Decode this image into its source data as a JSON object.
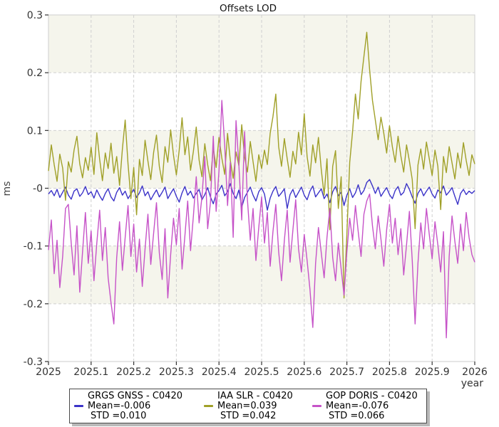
{
  "title": "Offsets LOD",
  "axes": {
    "xlabel": "year",
    "ylabel": "ms"
  },
  "legend": {
    "entries": [
      {
        "name": "GRGS GNSS - C0420",
        "mean": "Mean=-0.006",
        "std": "STD =0.010"
      },
      {
        "name": "IAA SLR - C0420",
        "mean": "Mean=0.039",
        "std": "STD =0.042"
      },
      {
        "name": "GOP DORIS - C0420",
        "mean": "Mean=-0.076",
        "std": "STD =0.066"
      }
    ]
  },
  "chart_data": {
    "type": "line",
    "title": "Offsets LOD",
    "xlabel": "year",
    "ylabel": "ms",
    "xlim": [
      2025,
      2026
    ],
    "ylim": [
      -0.3,
      0.3
    ],
    "grid": "dashed",
    "legend_position": "bottom",
    "band_colors": [
      "#f5f5ec",
      "#ffffff"
    ],
    "border_color": "#d4d4d4",
    "grid_color": "#cfcfcf",
    "tick_color": "#333333",
    "text_color": "#333333",
    "x_ticks": [
      "2025",
      "2025.1",
      "2025.2",
      "2025.3",
      "2025.4",
      "2025.5",
      "2025.6",
      "2025.7",
      "2025.8",
      "2025.9",
      "2026"
    ],
    "x_tick_values": [
      2025,
      2025.1,
      2025.2,
      2025.3,
      2025.4,
      2025.5,
      2025.6,
      2025.7,
      2025.8,
      2025.9,
      2026
    ],
    "y_ticks": [
      "0.3",
      "0.2",
      "0.1",
      "-0",
      "-0.1",
      "-0.2",
      "-0.3"
    ],
    "y_tick_values": [
      0.3,
      0.2,
      0.1,
      0,
      -0.1,
      -0.2,
      -0.3
    ],
    "series": [
      {
        "name": "GRGS GNSS - C0420",
        "color": "#3b33c8",
        "mean": -0.006,
        "std": 0.01,
        "x_start": 2025,
        "x_step": 0.0066667,
        "values": [
          -0.01,
          -0.004,
          -0.013,
          -0.002,
          -0.016,
          -0.007,
          0.002,
          -0.012,
          -0.019,
          -0.005,
          -0.001,
          -0.014,
          -0.008,
          0.003,
          -0.011,
          -0.006,
          -0.017,
          -0.003,
          -0.013,
          -0.021,
          -0.009,
          -0.001,
          -0.015,
          -0.022,
          -0.007,
          0.001,
          -0.012,
          -0.005,
          -0.018,
          -0.01,
          -0.002,
          -0.016,
          -0.008,
          0.004,
          -0.013,
          -0.006,
          -0.02,
          -0.011,
          -0.003,
          -0.015,
          -0.007,
          0.002,
          -0.018,
          -0.009,
          -0.001,
          -0.014,
          -0.024,
          -0.008,
          0.003,
          -0.012,
          -0.005,
          -0.017,
          -0.009,
          -0.002,
          -0.02,
          -0.011,
          0.001,
          -0.015,
          -0.027,
          -0.01,
          -0.004,
          0.005,
          -0.013,
          -0.006,
          0.008,
          -0.009,
          -0.018,
          -0.003,
          -0.033,
          -0.016,
          -0.007,
          0.002,
          -0.012,
          -0.022,
          -0.006,
          0.001,
          -0.01,
          -0.038,
          -0.017,
          -0.005,
          0.003,
          -0.014,
          -0.008,
          -0.001,
          -0.035,
          -0.011,
          -0.002,
          -0.016,
          -0.007,
          0.002,
          -0.012,
          -0.02,
          -0.005,
          0.004,
          -0.015,
          -0.008,
          -0.001,
          -0.018,
          -0.01,
          -0.025,
          -0.006,
          0.003,
          -0.013,
          -0.007,
          -0.03,
          -0.012,
          -0.001,
          -0.016,
          -0.008,
          0.006,
          -0.011,
          -0.004,
          0.01,
          0.015,
          0.004,
          -0.009,
          0.002,
          -0.014,
          -0.006,
          0.001,
          -0.011,
          -0.018,
          -0.004,
          0.003,
          -0.012,
          -0.007,
          0.008,
          -0.002,
          -0.015,
          -0.026,
          -0.009,
          -0.001,
          -0.013,
          -0.005,
          0.002,
          -0.01,
          -0.017,
          -0.003,
          -0.008,
          0.004,
          -0.012,
          -0.006,
          0.001,
          -0.014,
          -0.028,
          -0.009,
          -0.002,
          -0.011,
          -0.005,
          -0.009,
          -0.004
        ]
      },
      {
        "name": "IAA SLR - C0420",
        "color": "#a0a028",
        "mean": 0.039,
        "std": 0.042,
        "x_start": 2025,
        "x_step": 0.0066667,
        "values": [
          0.03,
          0.075,
          0.041,
          0.012,
          0.059,
          0.035,
          -0.021,
          0.046,
          0.028,
          0.066,
          0.09,
          0.042,
          0.018,
          0.053,
          0.031,
          0.071,
          0.024,
          0.096,
          0.05,
          0.013,
          0.061,
          0.034,
          0.078,
          0.026,
          0.055,
          0.005,
          0.068,
          0.118,
          0.042,
          -0.018,
          0.036,
          -0.046,
          0.05,
          0.022,
          0.083,
          0.047,
          0.015,
          0.062,
          0.092,
          0.038,
          0.01,
          0.072,
          0.045,
          0.101,
          0.057,
          0.023,
          0.066,
          0.122,
          0.058,
          0.089,
          0.031,
          0.064,
          0.106,
          0.049,
          0.02,
          0.077,
          0.041,
          0.013,
          0.07,
          0.036,
          0.088,
          0.052,
          0.024,
          0.095,
          0.048,
          0.017,
          0.063,
          0.039,
          0.11,
          0.054,
          0.028,
          0.081,
          0.046,
          0.012,
          0.058,
          0.034,
          0.066,
          0.041,
          0.095,
          0.124,
          0.163,
          0.072,
          0.038,
          0.086,
          0.051,
          0.019,
          0.064,
          0.042,
          0.097,
          0.058,
          0.129,
          0.055,
          0.021,
          0.075,
          0.044,
          0.088,
          0.032,
          -0.012,
          0.051,
          -0.072,
          0.038,
          0.065,
          -0.035,
          0.02,
          -0.19,
          -0.08,
          0.045,
          0.098,
          0.163,
          0.12,
          0.185,
          0.228,
          0.27,
          0.205,
          0.152,
          0.118,
          0.084,
          0.123,
          0.095,
          0.061,
          0.108,
          0.072,
          0.045,
          0.09,
          0.056,
          0.028,
          0.075,
          0.047,
          0.015,
          -0.07,
          0.04,
          0.068,
          0.033,
          0.08,
          0.051,
          0.022,
          0.066,
          0.038,
          -0.037,
          0.055,
          0.027,
          0.072,
          0.044,
          0.016,
          0.061,
          0.035,
          0.079,
          0.048,
          0.022,
          0.058,
          0.042
        ]
      },
      {
        "name": "GOP DORIS - C0420",
        "color": "#c653c8",
        "mean": -0.076,
        "std": 0.066,
        "x_start": 2025,
        "x_step": 0.0066667,
        "values": [
          -0.107,
          -0.055,
          -0.148,
          -0.09,
          -0.172,
          -0.118,
          -0.035,
          -0.028,
          -0.095,
          -0.15,
          -0.065,
          -0.18,
          -0.11,
          -0.042,
          -0.13,
          -0.074,
          -0.16,
          -0.095,
          -0.038,
          -0.125,
          -0.068,
          -0.155,
          -0.198,
          -0.235,
          -0.12,
          -0.058,
          -0.142,
          -0.085,
          -0.03,
          -0.118,
          -0.062,
          -0.145,
          -0.088,
          -0.17,
          -0.105,
          -0.045,
          -0.132,
          -0.078,
          -0.025,
          -0.112,
          -0.158,
          -0.07,
          -0.19,
          -0.115,
          -0.052,
          -0.098,
          -0.035,
          -0.14,
          -0.082,
          -0.022,
          -0.108,
          -0.048,
          0.02,
          -0.06,
          -0.015,
          0.055,
          -0.07,
          -0.025,
          0.09,
          -0.04,
          0.03,
          0.152,
          0.075,
          -0.03,
          0.045,
          -0.085,
          0.117,
          0.04,
          -0.055,
          0.098,
          -0.02,
          -0.09,
          -0.035,
          -0.125,
          -0.068,
          -0.015,
          -0.095,
          -0.042,
          -0.135,
          -0.075,
          -0.028,
          -0.11,
          -0.16,
          -0.09,
          -0.038,
          -0.128,
          -0.072,
          -0.02,
          -0.105,
          -0.145,
          -0.08,
          -0.125,
          -0.175,
          -0.241,
          -0.13,
          -0.068,
          -0.112,
          -0.155,
          -0.085,
          -0.035,
          -0.12,
          -0.16,
          -0.095,
          -0.14,
          -0.185,
          -0.11,
          -0.052,
          -0.09,
          -0.03,
          -0.075,
          -0.118,
          -0.045,
          -0.022,
          -0.01,
          -0.065,
          -0.105,
          -0.048,
          -0.088,
          -0.135,
          -0.072,
          -0.028,
          -0.095,
          -0.052,
          -0.115,
          -0.07,
          -0.15,
          -0.098,
          -0.04,
          -0.125,
          -0.235,
          -0.13,
          -0.06,
          -0.105,
          -0.035,
          -0.08,
          -0.122,
          -0.058,
          -0.098,
          -0.145,
          -0.075,
          -0.259,
          -0.118,
          -0.048,
          -0.092,
          -0.13,
          -0.062,
          -0.108,
          -0.042,
          -0.085,
          -0.115,
          -0.128
        ]
      }
    ]
  }
}
